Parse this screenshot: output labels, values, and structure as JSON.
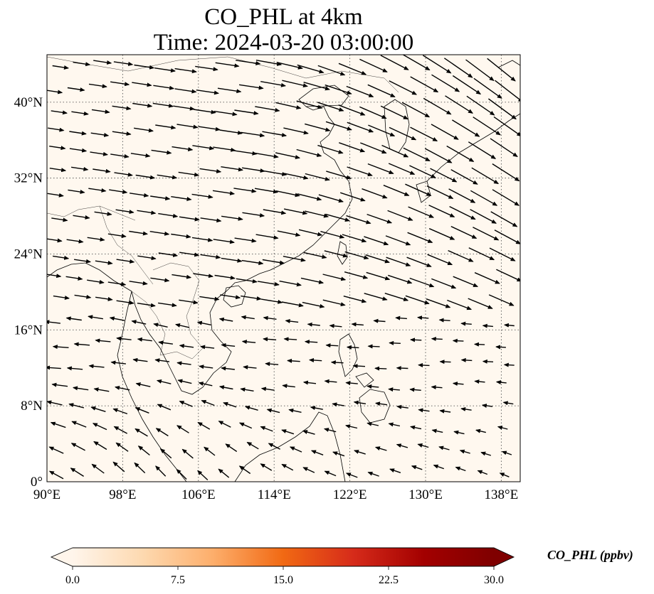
{
  "title": {
    "line1": "CO_PHL at 4km",
    "line2": "Time: 2024-03-20 03:00:00"
  },
  "map": {
    "lon_range": [
      90,
      140
    ],
    "lat_range": [
      0,
      45
    ],
    "lon_ticks": [
      {
        "value": 90,
        "label": "90°E"
      },
      {
        "value": 98,
        "label": "98°E"
      },
      {
        "value": 106,
        "label": "106°E"
      },
      {
        "value": 114,
        "label": "114°E"
      },
      {
        "value": 122,
        "label": "122°E"
      },
      {
        "value": 130,
        "label": "130°E"
      },
      {
        "value": 138,
        "label": "138°E"
      }
    ],
    "lat_ticks": [
      {
        "value": 0,
        "label": "0°"
      },
      {
        "value": 8,
        "label": "8°N"
      },
      {
        "value": 16,
        "label": "16°N"
      },
      {
        "value": 24,
        "label": "24°N"
      },
      {
        "value": 32,
        "label": "32°N"
      },
      {
        "value": 40,
        "label": "40°N"
      }
    ],
    "gridlines": true,
    "background_color": "#fff8ef",
    "coastline_color": "#000000",
    "wind_vector_color": "#000000"
  },
  "colorbar": {
    "title": "CO_PHL (ppbv)",
    "min": 0.0,
    "max": 30.0,
    "ticks": [
      {
        "value": 0.0,
        "label": "0.0"
      },
      {
        "value": 7.5,
        "label": "7.5"
      },
      {
        "value": 15.0,
        "label": "15.0"
      },
      {
        "value": 22.5,
        "label": "22.5"
      },
      {
        "value": 30.0,
        "label": "30.0"
      }
    ],
    "colormap": [
      "#fff5eb",
      "#fdd9b0",
      "#fdae6b",
      "#f16913",
      "#d62b1a",
      "#a30000",
      "#7f0000"
    ],
    "extend": "both"
  }
}
